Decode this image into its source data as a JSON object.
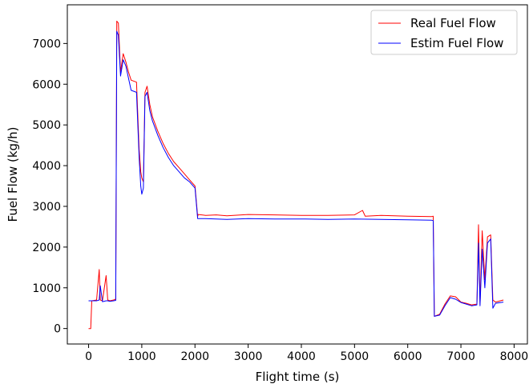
{
  "chart_data": {
    "type": "line",
    "title": "",
    "xlabel": "Flight time (s)",
    "ylabel": "Fuel Flow (kg/h)",
    "xlim": [
      -400,
      8250
    ],
    "ylim": [
      -380,
      7950
    ],
    "x_ticks": [
      0,
      1000,
      2000,
      3000,
      4000,
      5000,
      6000,
      7000,
      8000
    ],
    "y_ticks": [
      0,
      1000,
      2000,
      3000,
      4000,
      5000,
      6000,
      7000
    ],
    "x_tick_labels": [
      "0",
      "1000",
      "2000",
      "3000",
      "4000",
      "5000",
      "6000",
      "7000",
      "8000"
    ],
    "y_tick_labels": [
      "0",
      "1000",
      "2000",
      "3000",
      "4000",
      "5000",
      "6000",
      "7000"
    ],
    "grid": false,
    "legend_position": "top-right",
    "series": [
      {
        "name": "Real Fuel Flow",
        "color": "#ff0000",
        "x": [
          0,
          40,
          60,
          150,
          200,
          220,
          260,
          330,
          360,
          400,
          470,
          510,
          530,
          560,
          600,
          650,
          700,
          750,
          800,
          900,
          950,
          980,
          1000,
          1030,
          1060,
          1100,
          1150,
          1200,
          1300,
          1400,
          1500,
          1600,
          1700,
          1800,
          1900,
          2000,
          2050,
          2060,
          2200,
          2400,
          2600,
          3000,
          3500,
          4000,
          4500,
          5000,
          5150,
          5200,
          5500,
          6000,
          6450,
          6480,
          6500,
          6600,
          6700,
          6800,
          6900,
          7000,
          7100,
          7200,
          7300,
          7330,
          7360,
          7400,
          7450,
          7500,
          7560,
          7600,
          7650,
          7800
        ],
        "values": [
          0,
          0,
          680,
          700,
          1450,
          700,
          680,
          1300,
          700,
          680,
          700,
          720,
          7550,
          7500,
          6300,
          6750,
          6550,
          6300,
          6100,
          6050,
          4400,
          3850,
          3700,
          3600,
          5800,
          5950,
          5500,
          5200,
          4850,
          4550,
          4300,
          4100,
          3950,
          3800,
          3650,
          3500,
          2750,
          2800,
          2780,
          2790,
          2770,
          2800,
          2790,
          2780,
          2780,
          2790,
          2900,
          2760,
          2780,
          2760,
          2750,
          2760,
          300,
          350,
          600,
          800,
          780,
          650,
          620,
          580,
          600,
          2550,
          600,
          2400,
          1200,
          2250,
          2300,
          700,
          650,
          700
        ]
      },
      {
        "name": "Estim Fuel Flow",
        "color": "#0000ff",
        "x": [
          0,
          60,
          150,
          200,
          220,
          260,
          330,
          360,
          400,
          470,
          510,
          530,
          560,
          600,
          650,
          700,
          750,
          800,
          900,
          950,
          980,
          1000,
          1030,
          1060,
          1100,
          1150,
          1200,
          1300,
          1400,
          1500,
          1600,
          1700,
          1800,
          1900,
          2000,
          2050,
          2060,
          2200,
          2400,
          2600,
          3000,
          3500,
          4000,
          4500,
          5000,
          5500,
          6000,
          6450,
          6480,
          6500,
          6600,
          6700,
          6800,
          6900,
          7000,
          7100,
          7200,
          7300,
          7330,
          7360,
          7400,
          7450,
          7500,
          7560,
          7600,
          7650,
          7800
        ],
        "values": [
          680,
          680,
          680,
          700,
          1050,
          660,
          680,
          680,
          670,
          680,
          690,
          7300,
          7200,
          6200,
          6600,
          6450,
          6150,
          5850,
          5800,
          4200,
          3500,
          3300,
          3450,
          5700,
          5800,
          5350,
          5100,
          4750,
          4450,
          4200,
          4000,
          3850,
          3700,
          3600,
          3450,
          2700,
          2700,
          2700,
          2690,
          2680,
          2700,
          2690,
          2690,
          2680,
          2690,
          2680,
          2670,
          2660,
          2650,
          300,
          330,
          560,
          760,
          720,
          640,
          600,
          560,
          580,
          2100,
          560,
          1950,
          1000,
          2100,
          2200,
          500,
          620,
          650
        ]
      }
    ]
  }
}
